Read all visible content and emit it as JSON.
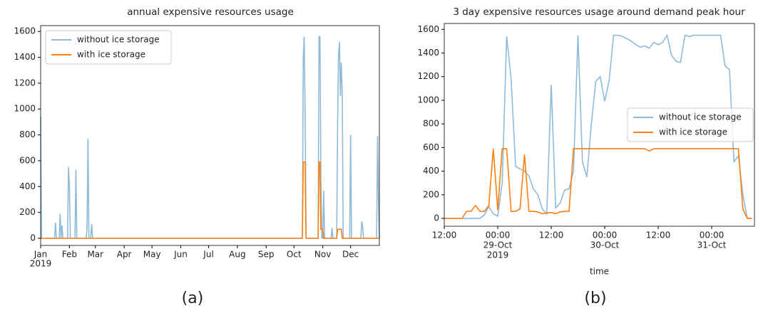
{
  "chart_data": [
    {
      "type": "line",
      "title": "annual expensive resources usage",
      "caption": "(a)",
      "series": [
        {
          "name": "without ice storage",
          "color": "#8fbbd9",
          "x": [
            0,
            1,
            15,
            16,
            17,
            20,
            21,
            22,
            23,
            24,
            29,
            30,
            31,
            32,
            37,
            38,
            39,
            49,
            50,
            51,
            52,
            54,
            55,
            56,
            282,
            283,
            284,
            285,
            286,
            299,
            300,
            301,
            302,
            303,
            304,
            305,
            306,
            313,
            314,
            315,
            319,
            320,
            321,
            322,
            323,
            324,
            325,
            326,
            333,
            334,
            335,
            345,
            346,
            347,
            348,
            362,
            363,
            364,
            365
          ],
          "values": [
            940,
            0,
            0,
            120,
            0,
            0,
            190,
            0,
            100,
            0,
            0,
            550,
            400,
            0,
            0,
            530,
            0,
            0,
            80,
            770,
            0,
            0,
            110,
            0,
            0,
            1400,
            1560,
            980,
            0,
            0,
            1560,
            1560,
            470,
            0,
            0,
            370,
            0,
            0,
            80,
            0,
            0,
            900,
            1420,
            1520,
            1100,
            1360,
            1120,
            0,
            0,
            800,
            0,
            0,
            130,
            90,
            0,
            0,
            790,
            300,
            0
          ]
        },
        {
          "name": "with ice storage",
          "color": "#ff7f0e",
          "x": [
            0,
            282,
            283,
            284,
            285,
            286,
            299,
            300,
            301,
            302,
            304,
            305,
            319,
            320,
            324,
            325,
            365
          ],
          "values": [
            0,
            0,
            590,
            590,
            590,
            0,
            0,
            590,
            590,
            70,
            70,
            0,
            0,
            70,
            70,
            0,
            0
          ]
        }
      ],
      "xlim": [
        0,
        365
      ],
      "xticks": [
        {
          "value": 0,
          "label": "Jan"
        },
        {
          "value": 31,
          "label": "Feb"
        },
        {
          "value": 59,
          "label": "Mar"
        },
        {
          "value": 90,
          "label": "Apr"
        },
        {
          "value": 120,
          "label": "May"
        },
        {
          "value": 151,
          "label": "Jun"
        },
        {
          "value": 181,
          "label": "Jul"
        },
        {
          "value": 212,
          "label": "Aug"
        },
        {
          "value": 243,
          "label": "Sep"
        },
        {
          "value": 273,
          "label": "Oct"
        },
        {
          "value": 304,
          "label": "Nov"
        },
        {
          "value": 334,
          "label": "Dec"
        }
      ],
      "xticks_secondary": [
        {
          "value": 0,
          "label": "2019"
        }
      ],
      "ylim": [
        -55,
        1645
      ],
      "yticks": [
        0,
        200,
        400,
        600,
        800,
        1000,
        1200,
        1400,
        1600
      ],
      "legend": "upper-left"
    },
    {
      "type": "line",
      "title": "3 day expensive resources usage around demand peak hour",
      "caption": "(b)",
      "xlabel": "time",
      "series": [
        {
          "name": "without ice storage",
          "color": "#8fbbd9",
          "x": [
            "2019-10-28 12:00",
            "2019-10-28 13:00",
            "2019-10-28 14:00",
            "2019-10-28 15:00",
            "2019-10-28 16:00",
            "2019-10-28 17:00",
            "2019-10-28 18:00",
            "2019-10-28 19:00",
            "2019-10-28 20:00",
            "2019-10-28 21:00",
            "2019-10-28 22:00",
            "2019-10-28 23:00",
            "2019-10-29 00:00",
            "2019-10-29 01:00",
            "2019-10-29 02:00",
            "2019-10-29 03:00",
            "2019-10-29 04:00",
            "2019-10-29 05:00",
            "2019-10-29 06:00",
            "2019-10-29 07:00",
            "2019-10-29 08:00",
            "2019-10-29 09:00",
            "2019-10-29 10:00",
            "2019-10-29 11:00",
            "2019-10-29 12:00",
            "2019-10-29 13:00",
            "2019-10-29 14:00",
            "2019-10-29 15:00",
            "2019-10-29 16:00",
            "2019-10-29 17:00",
            "2019-10-29 18:00",
            "2019-10-29 19:00",
            "2019-10-29 20:00",
            "2019-10-29 21:00",
            "2019-10-29 22:00",
            "2019-10-29 23:00",
            "2019-10-30 00:00",
            "2019-10-30 01:00",
            "2019-10-30 02:00",
            "2019-10-30 03:00",
            "2019-10-30 04:00",
            "2019-10-30 05:00",
            "2019-10-30 06:00",
            "2019-10-30 07:00",
            "2019-10-30 08:00",
            "2019-10-30 09:00",
            "2019-10-30 10:00",
            "2019-10-30 11:00",
            "2019-10-30 12:00",
            "2019-10-30 13:00",
            "2019-10-30 14:00",
            "2019-10-30 15:00",
            "2019-10-30 16:00",
            "2019-10-30 17:00",
            "2019-10-30 18:00",
            "2019-10-30 19:00",
            "2019-10-30 20:00",
            "2019-10-30 21:00",
            "2019-10-30 22:00",
            "2019-10-30 23:00",
            "2019-10-31 00:00",
            "2019-10-31 01:00",
            "2019-10-31 02:00",
            "2019-10-31 03:00",
            "2019-10-31 04:00",
            "2019-10-31 05:00",
            "2019-10-31 06:00",
            "2019-10-31 07:00",
            "2019-10-31 08:00",
            "2019-10-31 09:00"
          ],
          "values": [
            0,
            0,
            0,
            0,
            0,
            0,
            0,
            0,
            0,
            30,
            100,
            40,
            20,
            300,
            1540,
            1180,
            440,
            420,
            400,
            360,
            250,
            200,
            80,
            40,
            1130,
            90,
            130,
            240,
            250,
            400,
            1550,
            480,
            350,
            800,
            1160,
            1200,
            990,
            1170,
            1550,
            1550,
            1540,
            1520,
            1500,
            1470,
            1450,
            1460,
            1440,
            1490,
            1470,
            1490,
            1550,
            1380,
            1330,
            1320,
            1550,
            1540,
            1550,
            1550,
            1550,
            1550,
            1550,
            1550,
            1550,
            1290,
            1260,
            480,
            530,
            200,
            0,
            0
          ]
        },
        {
          "name": "with ice storage",
          "color": "#ff7f0e",
          "x": [
            "2019-10-28 12:00",
            "2019-10-28 13:00",
            "2019-10-28 14:00",
            "2019-10-28 15:00",
            "2019-10-28 16:00",
            "2019-10-28 17:00",
            "2019-10-28 18:00",
            "2019-10-28 19:00",
            "2019-10-28 20:00",
            "2019-10-28 21:00",
            "2019-10-28 22:00",
            "2019-10-28 23:00",
            "2019-10-29 00:00",
            "2019-10-29 01:00",
            "2019-10-29 02:00",
            "2019-10-29 03:00",
            "2019-10-29 04:00",
            "2019-10-29 05:00",
            "2019-10-29 06:00",
            "2019-10-29 07:00",
            "2019-10-29 08:00",
            "2019-10-29 09:00",
            "2019-10-29 10:00",
            "2019-10-29 11:00",
            "2019-10-29 12:00",
            "2019-10-29 13:00",
            "2019-10-29 14:00",
            "2019-10-29 15:00",
            "2019-10-29 16:00",
            "2019-10-29 17:00",
            "2019-10-29 18:00",
            "2019-10-29 19:00",
            "2019-10-29 20:00",
            "2019-10-29 21:00",
            "2019-10-29 22:00",
            "2019-10-29 23:00",
            "2019-10-30 00:00",
            "2019-10-30 01:00",
            "2019-10-30 02:00",
            "2019-10-30 03:00",
            "2019-10-30 04:00",
            "2019-10-30 05:00",
            "2019-10-30 06:00",
            "2019-10-30 07:00",
            "2019-10-30 08:00",
            "2019-10-30 09:00",
            "2019-10-30 10:00",
            "2019-10-30 11:00",
            "2019-10-30 12:00",
            "2019-10-30 13:00",
            "2019-10-30 14:00",
            "2019-10-30 15:00",
            "2019-10-30 16:00",
            "2019-10-30 17:00",
            "2019-10-30 18:00",
            "2019-10-30 19:00",
            "2019-10-30 20:00",
            "2019-10-30 21:00",
            "2019-10-30 22:00",
            "2019-10-30 23:00",
            "2019-10-31 00:00",
            "2019-10-31 01:00",
            "2019-10-31 02:00",
            "2019-10-31 03:00",
            "2019-10-31 04:00",
            "2019-10-31 05:00",
            "2019-10-31 06:00",
            "2019-10-31 07:00",
            "2019-10-31 08:00",
            "2019-10-31 09:00"
          ],
          "values": [
            0,
            0,
            0,
            0,
            0,
            60,
            60,
            110,
            60,
            60,
            110,
            590,
            70,
            590,
            590,
            60,
            60,
            80,
            540,
            60,
            60,
            55,
            40,
            45,
            50,
            40,
            55,
            60,
            60,
            590,
            590,
            590,
            590,
            590,
            590,
            590,
            590,
            590,
            590,
            590,
            590,
            590,
            590,
            590,
            590,
            590,
            570,
            590,
            590,
            590,
            590,
            590,
            590,
            590,
            590,
            590,
            590,
            590,
            590,
            590,
            590,
            590,
            590,
            590,
            590,
            590,
            590,
            80,
            0,
            0
          ]
        }
      ],
      "xlim": [
        "2019-10-28 12:00",
        "2019-10-31 09:36"
      ],
      "xticks": [
        {
          "value": "2019-10-28 12:00",
          "label": "12:00"
        },
        {
          "value": "2019-10-29 00:00",
          "label": "00:00"
        },
        {
          "value": "2019-10-29 12:00",
          "label": "12:00"
        },
        {
          "value": "2019-10-30 00:00",
          "label": "00:00"
        },
        {
          "value": "2019-10-30 12:00",
          "label": "12:00"
        },
        {
          "value": "2019-10-31 00:00",
          "label": "00:00"
        }
      ],
      "xticks_secondary": [
        {
          "value": "2019-10-29 00:00",
          "label": "29-Oct"
        },
        {
          "value": "2019-10-30 00:00",
          "label": "30-Oct"
        },
        {
          "value": "2019-10-31 00:00",
          "label": "31-Oct"
        }
      ],
      "xticks_tertiary": [
        {
          "value": "2019-10-29 00:00",
          "label": "2019"
        }
      ],
      "ylim": [
        -66,
        1650
      ],
      "yticks": [
        0,
        200,
        400,
        600,
        800,
        1000,
        1200,
        1400,
        1600
      ],
      "legend": "center-right"
    }
  ]
}
